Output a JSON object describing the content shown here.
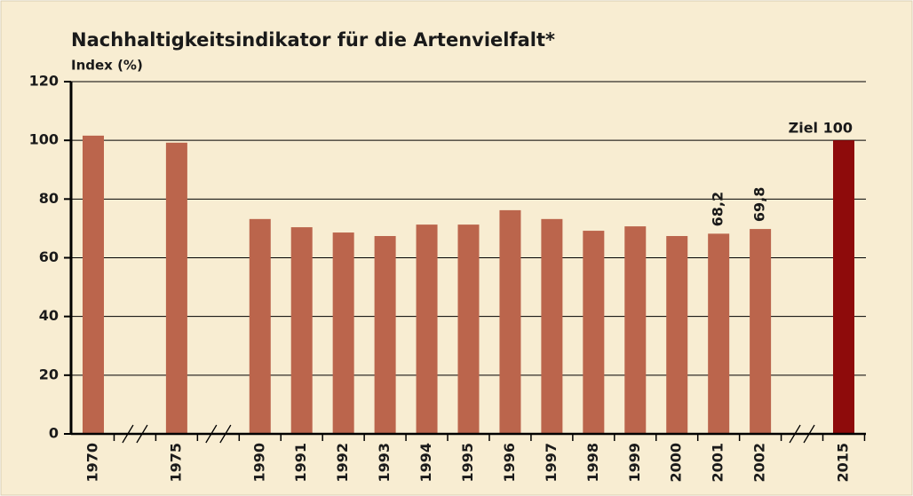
{
  "chart_data": {
    "type": "bar",
    "title": "Nachhaltigkeitsindikator für die Artenvielfalt*",
    "y_label": "Index (%)",
    "categories": [
      "1970",
      null,
      "1975",
      null,
      "1990",
      "1991",
      "1992",
      "1993",
      "1994",
      "1995",
      "1996",
      "1997",
      "1998",
      "1999",
      "2000",
      "2001",
      "2002",
      null,
      "2015"
    ],
    "values": [
      101.6,
      null,
      99.2,
      null,
      73.2,
      70.4,
      68.6,
      67.4,
      71.3,
      71.3,
      76.2,
      73.2,
      69.2,
      70.7,
      67.4,
      68.2,
      69.8,
      null,
      100
    ],
    "value_labels": [
      null,
      null,
      null,
      null,
      null,
      null,
      null,
      null,
      null,
      null,
      null,
      null,
      null,
      null,
      null,
      "68,2",
      "69,8",
      null,
      "Ziel 100"
    ],
    "colors": [
      "#bb654c",
      null,
      "#bb654c",
      null,
      "#bb654c",
      "#bb654c",
      "#bb654c",
      "#bb654c",
      "#bb654c",
      "#bb654c",
      "#bb654c",
      "#bb654c",
      "#bb654c",
      "#bb654c",
      "#bb654c",
      "#bb654c",
      "#bb654c",
      null,
      "#8e0b0b"
    ],
    "ylim": [
      0,
      120
    ],
    "yticks": [
      0,
      20,
      40,
      60,
      80,
      100,
      120
    ],
    "grid": true
  }
}
